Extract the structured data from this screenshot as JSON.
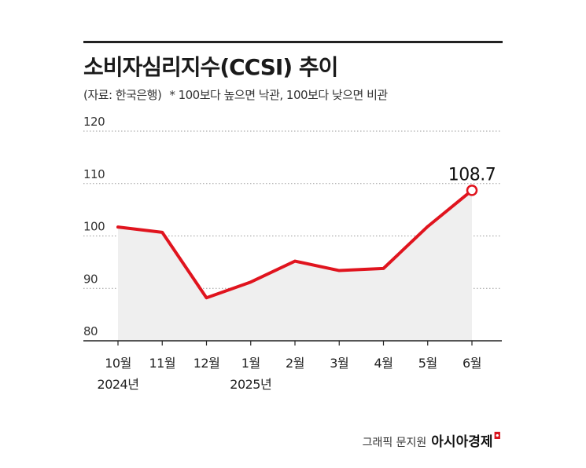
{
  "header": {
    "title": "소비자심리지수(CCSI) 추이",
    "source": "(자료: 한국은행)",
    "note": "* 100보다 높으면 낙관, 100보다 낮으면 비관"
  },
  "chart_data": {
    "type": "line",
    "categories": [
      "10월",
      "11월",
      "12월",
      "1월",
      "2월",
      "3월",
      "4월",
      "5월",
      "6월"
    ],
    "year_labels": [
      "2024년",
      "",
      "",
      "2025년",
      "",
      "",
      "",
      "",
      ""
    ],
    "values": [
      101.7,
      100.7,
      88.2,
      91.2,
      95.2,
      93.4,
      93.8,
      101.8,
      108.7
    ],
    "ylim": [
      80,
      120
    ],
    "yticks": [
      80,
      90,
      100,
      110,
      120
    ],
    "grid": true,
    "annotation": "108.7",
    "colors": {
      "line": "#e0141e",
      "area": "#efefef",
      "grid": "#9a9a9a"
    }
  },
  "footer": {
    "credit": "그래픽 문지원",
    "brand": "아시아경제",
    "brand_mark": "◘"
  }
}
